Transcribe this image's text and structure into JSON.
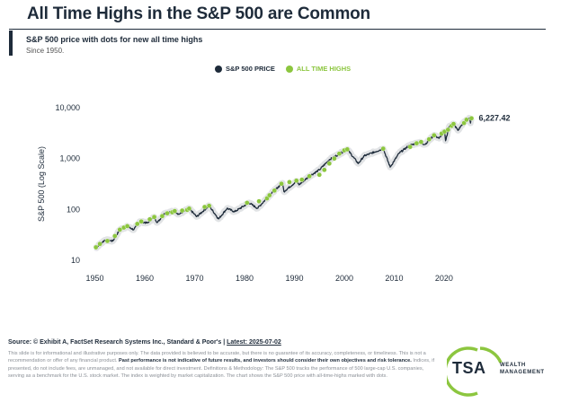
{
  "header": {
    "title": "All Time Highs in the S&P 500 are Common",
    "subtitle": "S&P 500 price with dots for new all time highs",
    "since": "Since 1950."
  },
  "legend": {
    "price": "S&P 500 PRICE",
    "highs": "ALL TIME HIGHS"
  },
  "colors": {
    "price": "#1e2b3a",
    "highs": "#8cc63f",
    "accent": "#1e2b3a"
  },
  "chart_data": {
    "type": "line",
    "title": "All Time Highs in the S&P 500 are Common",
    "ylabel": "S&P 500 (Log Scale)",
    "xlabel": "",
    "yscale": "log",
    "xlim": [
      1949,
      2026.5
    ],
    "ylim": [
      10,
      10000
    ],
    "x_ticks": [
      1950,
      1960,
      1970,
      1980,
      1990,
      2000,
      2010,
      2020
    ],
    "y_ticks": [
      {
        "value": 10,
        "label": "10"
      },
      {
        "value": 100,
        "label": "100"
      },
      {
        "value": 1000,
        "label": "1,000"
      },
      {
        "value": 10000,
        "label": "10,000"
      }
    ],
    "end_label": "6,227.42",
    "series": [
      {
        "name": "S&P 500 PRICE",
        "x": [
          1950,
          1952,
          1953.6,
          1955,
          1956.5,
          1957.8,
          1959,
          1960.5,
          1961.9,
          1962.5,
          1964,
          1966,
          1966.8,
          1968.9,
          1970.4,
          1972.9,
          1974.8,
          1976.5,
          1978,
          1980.9,
          1982.6,
          1985,
          1987.6,
          1987.9,
          1990.5,
          1990.9,
          1993,
          1995,
          1997,
          2000.6,
          2002.8,
          2004,
          2007.8,
          2009.2,
          2011,
          2013,
          2015,
          2016.2,
          2018,
          2019,
          2020.1,
          2020.3,
          2021,
          2021.9,
          2022.8,
          2023.5,
          2024.5,
          2025.1,
          2025.3,
          2025.5
        ],
        "values": [
          17,
          25,
          24,
          40,
          46,
          40,
          58,
          54,
          71,
          55,
          84,
          93,
          80,
          104,
          72,
          118,
          65,
          105,
          90,
          135,
          105,
          190,
          330,
          225,
          360,
          305,
          450,
          600,
          950,
          1520,
          800,
          1130,
          1560,
          680,
          1280,
          1800,
          2080,
          1900,
          2900,
          2500,
          3380,
          2240,
          4200,
          4800,
          3580,
          4550,
          5800,
          6100,
          5000,
          6227
        ]
      },
      {
        "name": "ALL TIME HIGHS",
        "x": [
          1950.2,
          1951,
          1952.5,
          1954,
          1955,
          1955.8,
          1956.5,
          1958.5,
          1959.3,
          1961,
          1961.9,
          1963.5,
          1964.5,
          1965.5,
          1966,
          1967.5,
          1968.5,
          1968.9,
          1972,
          1972.9,
          1980.5,
          1982.9,
          1984.5,
          1985,
          1986,
          1987.4,
          1989,
          1990.4,
          1991.5,
          1993,
          1995,
          1996,
          1997,
          1998,
          1999,
          2000,
          2000.6,
          2007.8,
          2013.2,
          2014.5,
          2015.4,
          2017,
          2018,
          2019.5,
          2020.1,
          2020.8,
          2021.5,
          2021.9,
          2024,
          2024.5,
          2025.5
        ],
        "values": [
          18,
          21,
          24,
          30,
          40,
          44,
          47,
          52,
          58,
          64,
          71,
          74,
          84,
          88,
          93,
          95,
          98,
          104,
          112,
          118,
          135,
          145,
          165,
          190,
          235,
          320,
          345,
          368,
          385,
          450,
          480,
          600,
          800,
          1000,
          1250,
          1450,
          1520,
          1565,
          1700,
          2000,
          2120,
          2400,
          2870,
          3100,
          3390,
          3700,
          4400,
          4800,
          5000,
          5800,
          6200
        ]
      }
    ]
  },
  "footer": {
    "source_prefix": "Source: © Exhibit A, FactSet Research Systems Inc., Standard & Poor's |",
    "source_latest": "Latest: 2025-07-02",
    "disc_1": "This slide is for informational and illustrative purposes only. The data provided is believed to be accurate, but there is no guarantee of its accuracy, completeness, or timeliness. This is not a recommendation or offer of any financial product.",
    "disc_bold": "Past performance is not indicative of future results, and investors should consider their own objectives and risk tolerance.",
    "disc_2": "Indices, if presented, do not include fees, are unmanaged, and not available for direct investment. Definitions & Methodology: The S&P 500 tracks the performance of 500 large-cap U.S. companies, serving as a benchmark for the U.S. stock market. The index is weighted by market capitalization. The chart shows the S&P 500 price with all-time-highs marked with dots."
  },
  "logo": {
    "name": "TSA",
    "line1": "WEALTH",
    "line2": "MANAGEMENT"
  }
}
